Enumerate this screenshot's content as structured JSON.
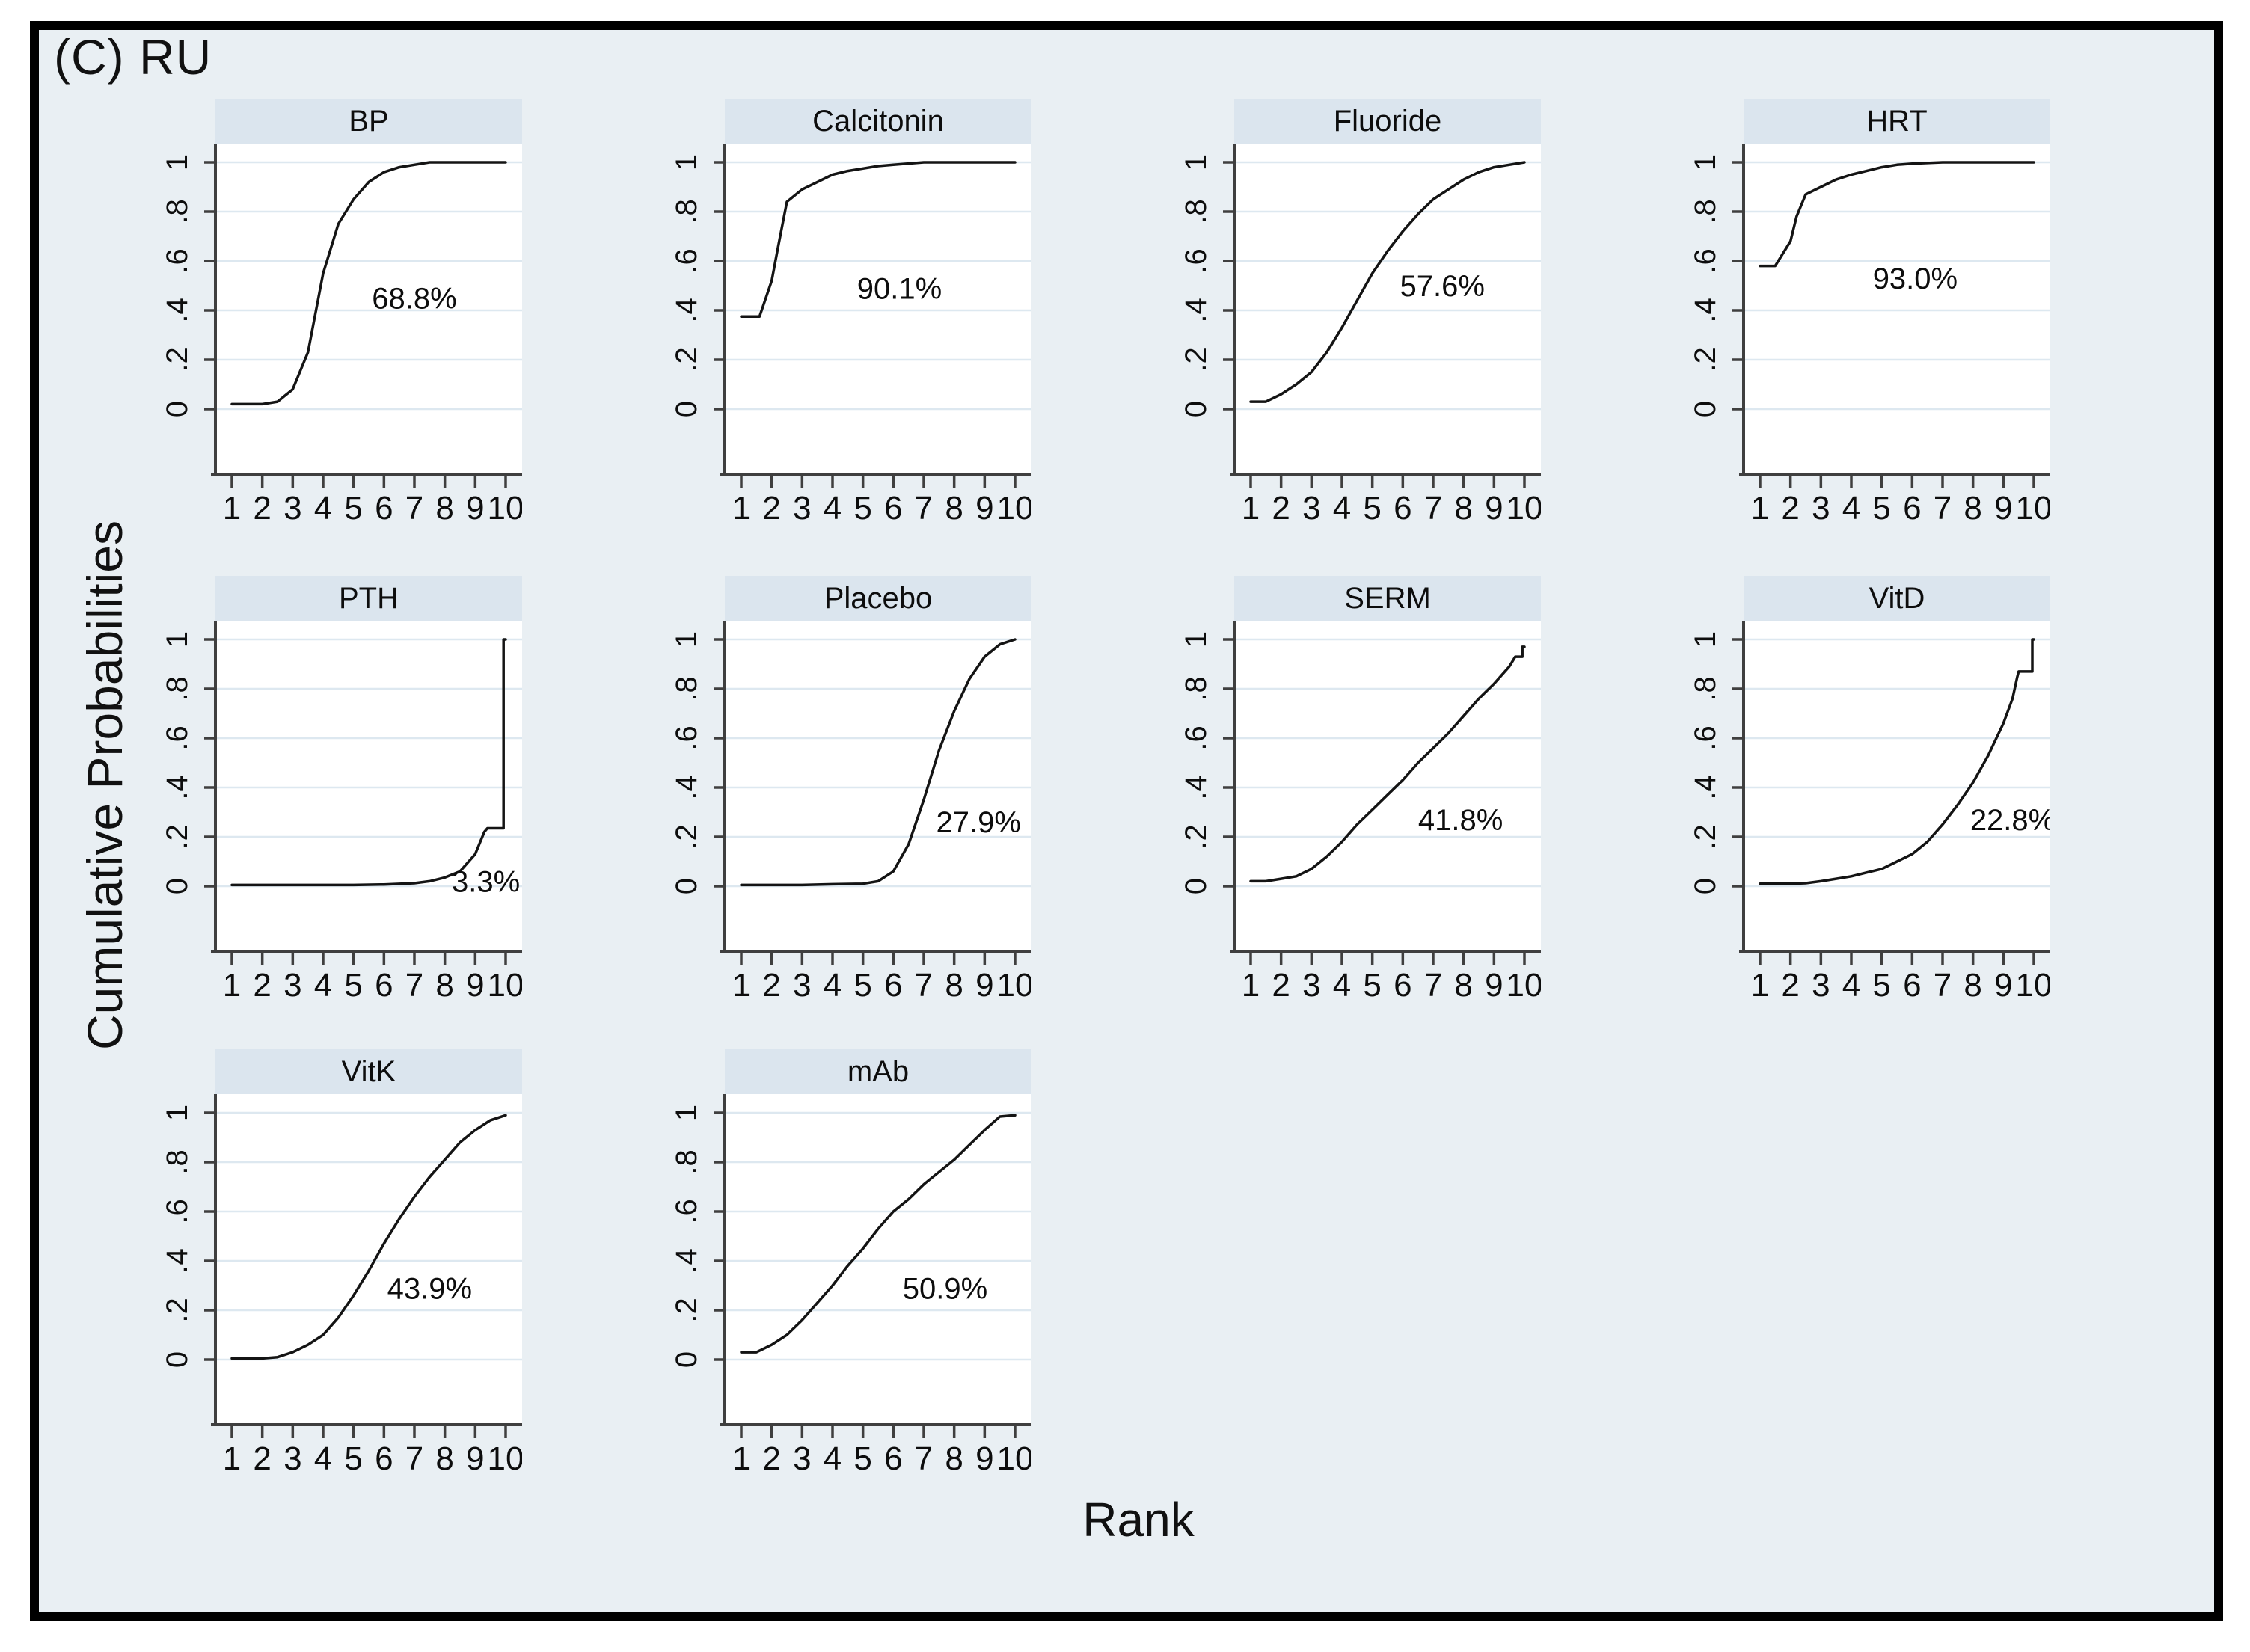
{
  "figure": {
    "title": "(C) RU",
    "ylabel": "Cumulative Probabilities",
    "xlabel": "Rank"
  },
  "colors": {
    "canvas_background": "#e9eff3",
    "outer_border": "#000000",
    "panel_header_background": "#dbe5ee",
    "plot_background": "#ffffff",
    "gridline": "#dde8f0",
    "axis": "#3f3f3f",
    "curve": "#141414",
    "text": "#0d0d0d"
  },
  "chart_data": {
    "type": "line",
    "subtype": "cumulative rank probability (SUCRA) small multiples, 3 rows x 4 columns",
    "title": "(C) RU",
    "xlabel": "Rank",
    "ylabel": "Cumulative Probabilities",
    "xlim": [
      1,
      10
    ],
    "ylim": [
      0,
      1
    ],
    "x_ticks": [
      "1",
      "2",
      "3",
      "4",
      "5",
      "6",
      "7",
      "8",
      "9",
      "10"
    ],
    "y_ticks": [
      "0",
      ".2",
      ".4",
      ".6",
      ".8",
      "1"
    ],
    "grid": "horizontal light-blue gridlines at each y tick",
    "legend": "none",
    "panels": [
      {
        "title": "BP",
        "sucra": "68.8%",
        "label_x": 7.0,
        "label_y": 0.45,
        "x": [
          1,
          2,
          2.5,
          3,
          3.5,
          4,
          4.5,
          5,
          5.5,
          6,
          6.5,
          7,
          7.5,
          8,
          9,
          10
        ],
        "y": [
          0.02,
          0.02,
          0.03,
          0.08,
          0.23,
          0.55,
          0.75,
          0.85,
          0.92,
          0.96,
          0.98,
          0.99,
          1,
          1,
          1,
          1
        ]
      },
      {
        "title": "Calcitonin",
        "sucra": "90.1%",
        "label_x": 6.2,
        "label_y": 0.49,
        "x": [
          1,
          1.6,
          2,
          2.2,
          2.5,
          3,
          3.5,
          4,
          4.5,
          5,
          5.5,
          6,
          7,
          8,
          9,
          10
        ],
        "y": [
          0.375,
          0.375,
          0.52,
          0.65,
          0.84,
          0.89,
          0.92,
          0.95,
          0.965,
          0.975,
          0.985,
          0.99,
          1,
          1,
          1,
          1
        ]
      },
      {
        "title": "Fluoride",
        "sucra": "57.6%",
        "label_x": 7.3,
        "label_y": 0.5,
        "x": [
          1,
          1.5,
          2,
          2.5,
          3,
          3.5,
          4,
          4.5,
          5,
          5.5,
          6,
          6.5,
          7,
          7.5,
          8,
          8.5,
          9,
          9.5,
          10
        ],
        "y": [
          0.03,
          0.03,
          0.06,
          0.1,
          0.15,
          0.23,
          0.33,
          0.44,
          0.55,
          0.64,
          0.72,
          0.79,
          0.85,
          0.89,
          0.93,
          0.96,
          0.98,
          0.99,
          1
        ]
      },
      {
        "title": "HRT",
        "sucra": "93.0%",
        "label_x": 6.1,
        "label_y": 0.53,
        "x": [
          1,
          1.5,
          2,
          2.2,
          2.5,
          3,
          3.5,
          4,
          4.5,
          5,
          5.5,
          6,
          7,
          8,
          9,
          10
        ],
        "y": [
          0.58,
          0.58,
          0.68,
          0.78,
          0.87,
          0.9,
          0.93,
          0.95,
          0.965,
          0.98,
          0.99,
          0.995,
          1,
          1,
          1,
          1
        ]
      },
      {
        "title": "PTH",
        "sucra": "3.3%",
        "label_x": 9.35,
        "label_y": 0.02,
        "x": [
          1,
          2,
          3,
          4,
          5,
          6,
          7,
          7.5,
          8,
          8.5,
          9,
          9.3,
          9.4,
          9.93,
          9.93,
          10
        ],
        "y": [
          0.005,
          0.005,
          0.005,
          0.005,
          0.005,
          0.007,
          0.012,
          0.02,
          0.035,
          0.06,
          0.13,
          0.22,
          0.235,
          0.235,
          1,
          1
        ]
      },
      {
        "title": "Placebo",
        "sucra": "27.9%",
        "label_x": 8.8,
        "label_y": 0.26,
        "x": [
          1,
          2,
          3,
          4,
          5,
          5.5,
          6,
          6.5,
          7,
          7.5,
          8,
          8.5,
          9,
          9.5,
          10
        ],
        "y": [
          0.005,
          0.005,
          0.005,
          0.008,
          0.01,
          0.02,
          0.06,
          0.17,
          0.35,
          0.55,
          0.71,
          0.84,
          0.93,
          0.98,
          1
        ]
      },
      {
        "title": "SERM",
        "sucra": "41.8%",
        "label_x": 7.9,
        "label_y": 0.27,
        "x": [
          1,
          1.5,
          2,
          2.5,
          3,
          3.5,
          4,
          4.5,
          5,
          5.5,
          6,
          6.5,
          7,
          7.5,
          8,
          8.5,
          9,
          9.5,
          9.7,
          9.93,
          9.93,
          10
        ],
        "y": [
          0.02,
          0.02,
          0.03,
          0.04,
          0.07,
          0.12,
          0.18,
          0.25,
          0.31,
          0.37,
          0.43,
          0.5,
          0.56,
          0.62,
          0.69,
          0.76,
          0.82,
          0.89,
          0.93,
          0.93,
          0.97,
          0.97
        ]
      },
      {
        "title": "VitD",
        "sucra": "22.8%",
        "label_x": 9.3,
        "label_y": 0.27,
        "x": [
          1,
          2,
          2.5,
          3,
          3.5,
          4,
          4.5,
          5,
          5.5,
          6,
          6.5,
          7,
          7.5,
          8,
          8.5,
          9,
          9.3,
          9.45,
          9.5,
          9.95,
          9.95,
          10
        ],
        "y": [
          0.01,
          0.01,
          0.012,
          0.02,
          0.03,
          0.04,
          0.055,
          0.07,
          0.1,
          0.13,
          0.18,
          0.25,
          0.33,
          0.42,
          0.53,
          0.66,
          0.76,
          0.845,
          0.87,
          0.87,
          1,
          1
        ]
      },
      {
        "title": "VitK",
        "sucra": "43.9%",
        "label_x": 7.5,
        "label_y": 0.29,
        "x": [
          1,
          2,
          2.5,
          3,
          3.5,
          4,
          4.5,
          5,
          5.5,
          6,
          6.5,
          7,
          7.5,
          8,
          8.5,
          9,
          9.5,
          10
        ],
        "y": [
          0.005,
          0.005,
          0.01,
          0.03,
          0.06,
          0.1,
          0.17,
          0.26,
          0.36,
          0.47,
          0.57,
          0.66,
          0.74,
          0.81,
          0.88,
          0.93,
          0.97,
          0.99
        ]
      },
      {
        "title": "mAb",
        "sucra": "50.9%",
        "label_x": 7.7,
        "label_y": 0.29,
        "x": [
          1,
          1.5,
          2,
          2.5,
          3,
          3.5,
          4,
          4.5,
          5,
          5.5,
          6,
          6.5,
          7,
          7.5,
          8,
          8.5,
          9,
          9.5,
          10
        ],
        "y": [
          0.03,
          0.03,
          0.06,
          0.1,
          0.16,
          0.23,
          0.3,
          0.38,
          0.45,
          0.53,
          0.6,
          0.65,
          0.71,
          0.76,
          0.81,
          0.87,
          0.93,
          0.985,
          0.99
        ]
      }
    ]
  }
}
